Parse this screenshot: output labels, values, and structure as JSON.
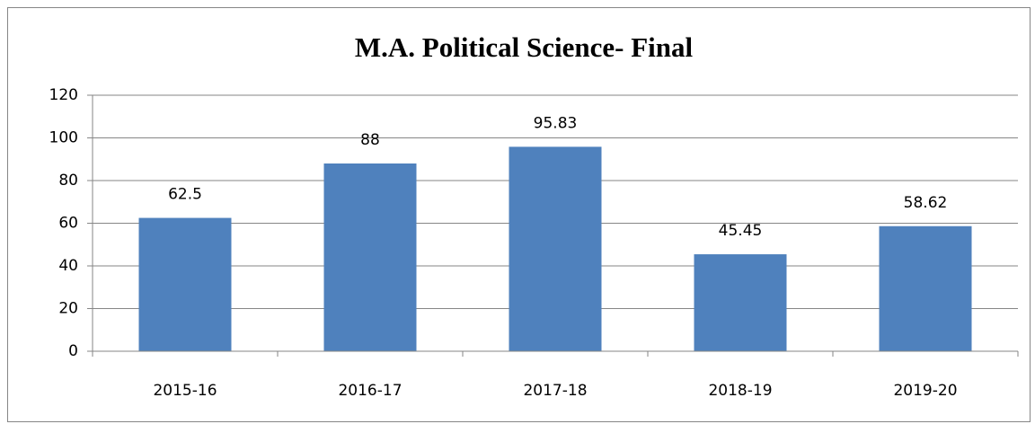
{
  "chart_data": {
    "type": "bar",
    "title": "M.A. Political Science- Final",
    "categories": [
      "2015-16",
      "2016-17",
      "2017-18",
      "2018-19",
      "2019-20"
    ],
    "values": [
      62.5,
      88,
      95.83,
      45.45,
      58.62
    ],
    "color": "#4f81bd",
    "ylim": [
      0,
      120
    ],
    "yticks": [
      0,
      20,
      40,
      60,
      80,
      100,
      120
    ],
    "grid": true
  }
}
